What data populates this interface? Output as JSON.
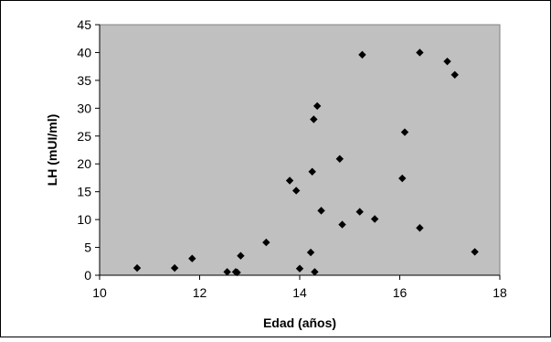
{
  "chart_data": {
    "type": "scatter",
    "title": "",
    "xlabel": "Edad (años)",
    "ylabel": "LH (mUI/ml)",
    "xlim": [
      10,
      18
    ],
    "ylim": [
      0,
      45
    ],
    "x_ticks": [
      10,
      12,
      14,
      16,
      18
    ],
    "y_ticks": [
      0,
      5,
      10,
      15,
      20,
      25,
      30,
      35,
      40,
      45
    ],
    "grid": false,
    "legend": "none",
    "plot_background": "#c0c0c0",
    "marker_color": "#000000",
    "marker": "diamond",
    "points": [
      {
        "x": 10.75,
        "y": 1.3
      },
      {
        "x": 11.5,
        "y": 1.3
      },
      {
        "x": 11.85,
        "y": 3.0
      },
      {
        "x": 12.55,
        "y": 0.6
      },
      {
        "x": 12.72,
        "y": 0.6
      },
      {
        "x": 12.75,
        "y": 0.5
      },
      {
        "x": 12.82,
        "y": 3.5
      },
      {
        "x": 13.33,
        "y": 5.9
      },
      {
        "x": 13.8,
        "y": 17.0
      },
      {
        "x": 13.93,
        "y": 15.2
      },
      {
        "x": 14.0,
        "y": 1.2
      },
      {
        "x": 14.22,
        "y": 4.1
      },
      {
        "x": 14.25,
        "y": 18.6
      },
      {
        "x": 14.28,
        "y": 28.0
      },
      {
        "x": 14.3,
        "y": 0.6
      },
      {
        "x": 14.35,
        "y": 30.4
      },
      {
        "x": 14.43,
        "y": 11.6
      },
      {
        "x": 14.8,
        "y": 20.9
      },
      {
        "x": 14.85,
        "y": 9.1
      },
      {
        "x": 15.2,
        "y": 11.4
      },
      {
        "x": 15.25,
        "y": 39.6
      },
      {
        "x": 15.5,
        "y": 10.1
      },
      {
        "x": 16.05,
        "y": 17.4
      },
      {
        "x": 16.1,
        "y": 25.7
      },
      {
        "x": 16.4,
        "y": 40.0
      },
      {
        "x": 16.4,
        "y": 8.5
      },
      {
        "x": 16.95,
        "y": 38.4
      },
      {
        "x": 17.1,
        "y": 36.0
      },
      {
        "x": 17.5,
        "y": 4.2
      }
    ]
  }
}
